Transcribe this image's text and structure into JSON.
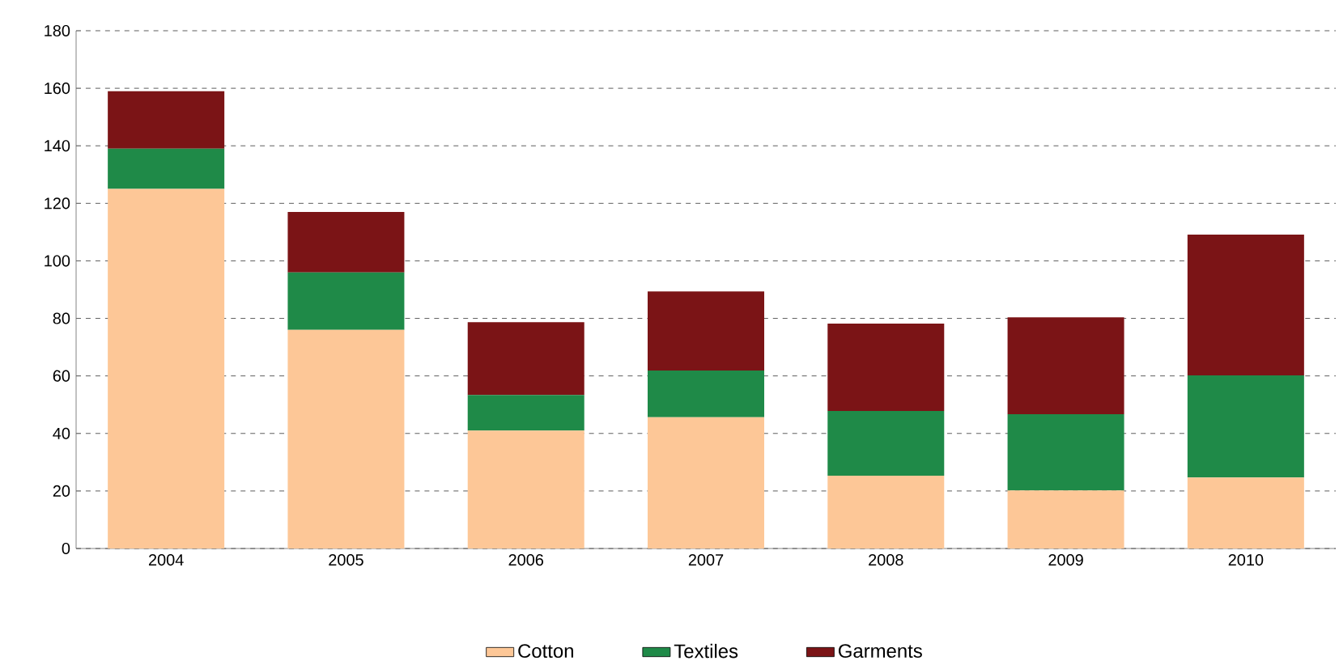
{
  "chart_data": {
    "type": "bar",
    "stacked": true,
    "categories": [
      "2004",
      "2005",
      "2006",
      "2007",
      "2008",
      "2009",
      "2010"
    ],
    "series": [
      {
        "name": "Cotton",
        "color": "#fdc797",
        "values": [
          125,
          76,
          41,
          45.6,
          25.3,
          20.2,
          24.7
        ]
      },
      {
        "name": "Textiles",
        "color": "#1f8a48",
        "values": [
          14,
          20,
          12.4,
          16.3,
          22.5,
          26.5,
          35.5
        ]
      },
      {
        "name": "Garments",
        "color": "#7b1416",
        "values": [
          20,
          21,
          25.3,
          27.5,
          30.4,
          33.7,
          48.9
        ]
      }
    ],
    "ylim": [
      0,
      180
    ],
    "yticks": [
      0,
      20,
      40,
      60,
      80,
      100,
      120,
      140,
      160,
      180
    ],
    "grid": "y",
    "legend": "bottom"
  }
}
